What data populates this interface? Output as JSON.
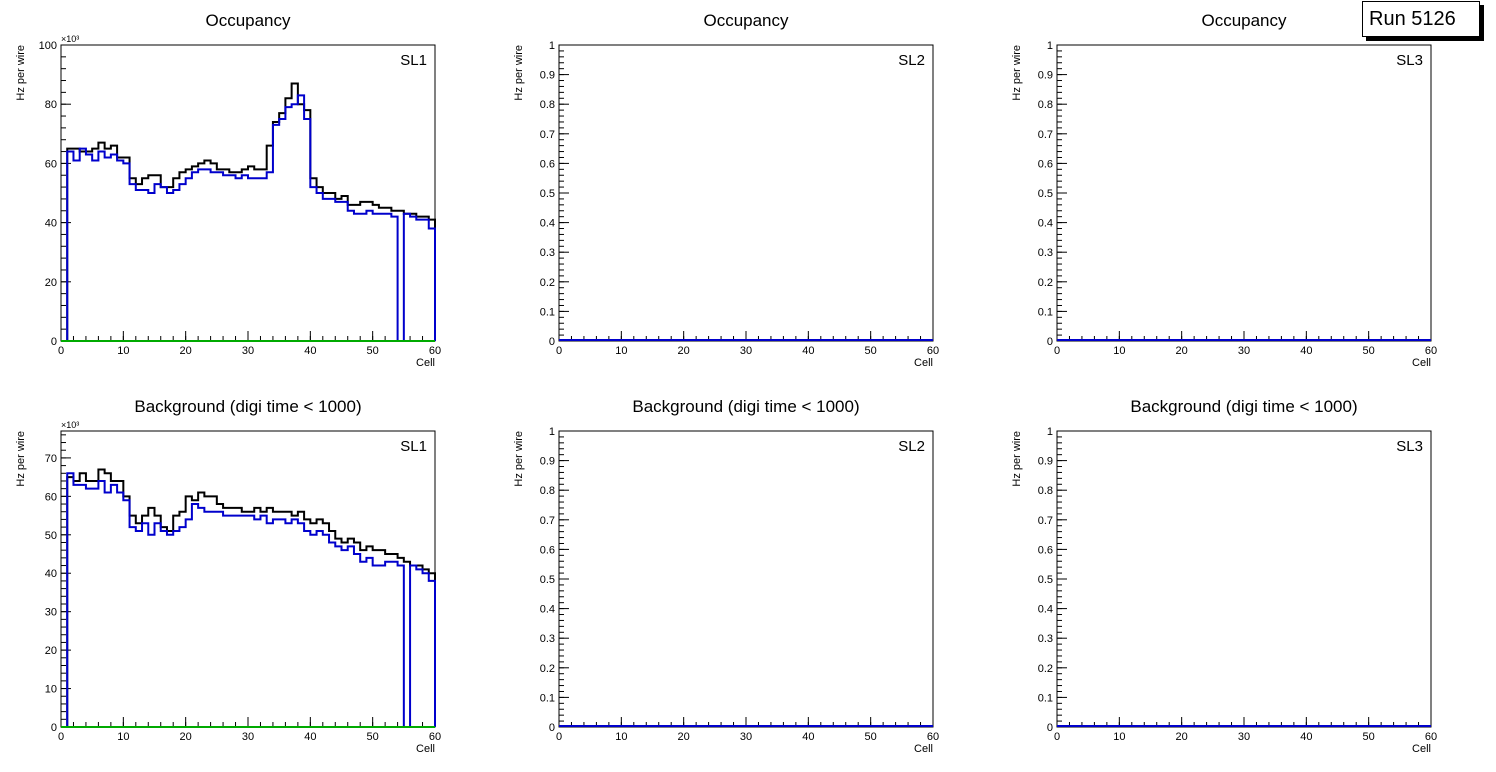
{
  "run_label": "Run 5126",
  "colors": {
    "total": "#000000",
    "blue": "#0000cc",
    "green": "#00aa00",
    "axis": "#000000"
  },
  "chart_data": [
    {
      "type": "line",
      "title": "Occupancy",
      "label": "SL1",
      "xlabel": "Cell",
      "ylabel": "Hz per wire",
      "xlim": [
        0,
        60
      ],
      "ylim": [
        0,
        100
      ],
      "yticks": [
        "0",
        "20",
        "40",
        "60",
        "80",
        "100"
      ],
      "xticks": [
        "0",
        "10",
        "20",
        "30",
        "40",
        "50",
        "60"
      ],
      "exponent_label": "×10³",
      "series": [
        {
          "name": "black",
          "color": "#000000",
          "values": [
            0,
            65,
            65,
            64,
            64,
            65,
            67,
            65,
            66,
            62,
            62,
            55,
            53,
            55,
            56,
            56,
            52,
            52,
            55,
            57,
            58,
            59,
            60,
            61,
            60,
            58,
            58,
            57,
            57,
            58,
            59,
            58,
            58,
            66,
            74,
            77,
            82,
            87,
            80,
            78,
            55,
            52,
            50,
            50,
            48,
            49,
            46,
            46,
            47,
            47,
            46,
            45,
            45,
            44,
            44,
            43,
            43,
            42,
            42,
            41
          ]
        },
        {
          "name": "blue",
          "color": "#0000cc",
          "values": [
            0,
            64,
            61,
            65,
            63,
            61,
            64,
            62,
            63,
            61,
            60,
            53,
            51,
            51,
            50,
            53,
            52,
            50,
            51,
            53,
            55,
            57,
            58,
            58,
            57,
            57,
            56,
            56,
            55,
            56,
            55,
            55,
            55,
            57,
            73,
            75,
            79,
            80,
            83,
            75,
            52,
            50,
            48,
            48,
            47,
            47,
            44,
            43,
            43,
            44,
            43,
            43,
            43,
            42,
            0,
            43,
            42,
            41,
            41,
            38
          ]
        },
        {
          "name": "green",
          "color": "#00aa00",
          "values": [
            0,
            0,
            0,
            0,
            0,
            0,
            0,
            0,
            0,
            0,
            0,
            0,
            0,
            0,
            0,
            0,
            0,
            0,
            0,
            0,
            0,
            0,
            0,
            0,
            0,
            0,
            0,
            0,
            0,
            0,
            0,
            0,
            0,
            0,
            0,
            0,
            0,
            0,
            0,
            0,
            0,
            0,
            0,
            0,
            0,
            0,
            0,
            0,
            0,
            0,
            0,
            0,
            0,
            0,
            0,
            0,
            0,
            0,
            0,
            0
          ]
        }
      ]
    },
    {
      "type": "line",
      "title": "Occupancy",
      "label": "SL2",
      "xlabel": "Cell",
      "ylabel": "Hz per wire",
      "xlim": [
        0,
        60
      ],
      "ylim": [
        0,
        1
      ],
      "yticks": [
        "0",
        "0.1",
        "0.2",
        "0.3",
        "0.4",
        "0.5",
        "0.6",
        "0.7",
        "0.8",
        "0.9",
        "1"
      ],
      "xticks": [
        "0",
        "10",
        "20",
        "30",
        "40",
        "50",
        "60"
      ],
      "exponent_label": "",
      "series": [
        {
          "name": "blue",
          "color": "#0000cc",
          "values": []
        }
      ]
    },
    {
      "type": "line",
      "title": "Occupancy",
      "label": "SL3",
      "xlabel": "Cell",
      "ylabel": "Hz per wire",
      "xlim": [
        0,
        60
      ],
      "ylim": [
        0,
        1
      ],
      "yticks": [
        "0",
        "0.1",
        "0.2",
        "0.3",
        "0.4",
        "0.5",
        "0.6",
        "0.7",
        "0.8",
        "0.9",
        "1"
      ],
      "xticks": [
        "0",
        "10",
        "20",
        "30",
        "40",
        "50",
        "60"
      ],
      "exponent_label": "",
      "series": [
        {
          "name": "blue",
          "color": "#0000cc",
          "values": []
        }
      ]
    },
    {
      "type": "line",
      "title": "Background (digi time < 1000)",
      "label": "SL1",
      "xlabel": "Cell",
      "ylabel": "Hz per wire",
      "xlim": [
        0,
        60
      ],
      "ylim": [
        0,
        77
      ],
      "yticks": [
        "0",
        "10",
        "20",
        "30",
        "40",
        "50",
        "60",
        "70"
      ],
      "xticks": [
        "0",
        "10",
        "20",
        "30",
        "40",
        "50",
        "60"
      ],
      "exponent_label": "×10³",
      "series": [
        {
          "name": "black",
          "color": "#000000",
          "values": [
            0,
            65,
            64,
            66,
            64,
            64,
            67,
            66,
            64,
            64,
            60,
            55,
            53,
            55,
            57,
            55,
            52,
            51,
            55,
            56,
            60,
            59,
            61,
            60,
            60,
            58,
            57,
            57,
            57,
            56,
            56,
            57,
            56,
            57,
            56,
            56,
            56,
            55,
            56,
            54,
            53,
            54,
            53,
            51,
            49,
            48,
            49,
            48,
            46,
            47,
            46,
            46,
            45,
            45,
            44,
            43,
            42,
            42,
            41,
            40
          ]
        },
        {
          "name": "blue",
          "color": "#0000cc",
          "values": [
            0,
            66,
            63,
            63,
            62,
            62,
            64,
            61,
            63,
            61,
            59,
            52,
            51,
            53,
            50,
            53,
            51,
            50,
            51,
            52,
            54,
            58,
            57,
            56,
            56,
            56,
            55,
            55,
            55,
            55,
            55,
            54,
            55,
            53,
            54,
            54,
            53,
            54,
            53,
            51,
            50,
            51,
            50,
            48,
            47,
            46,
            47,
            45,
            43,
            44,
            42,
            42,
            43,
            43,
            42,
            0,
            42,
            41,
            40,
            38
          ]
        },
        {
          "name": "green",
          "color": "#00aa00",
          "values": [
            0,
            0,
            0,
            0,
            0,
            0,
            0,
            0,
            0,
            0,
            0,
            0,
            0,
            0,
            0,
            0,
            0,
            0,
            0,
            0,
            0,
            0,
            0,
            0,
            0,
            0,
            0,
            0,
            0,
            0,
            0,
            0,
            0,
            0,
            0,
            0,
            0,
            0,
            0,
            0,
            0,
            0,
            0,
            0,
            0,
            0,
            0,
            0,
            0,
            0,
            0,
            0,
            0,
            0,
            0,
            0,
            0,
            0,
            0,
            0
          ]
        }
      ]
    },
    {
      "type": "line",
      "title": "Background (digi time < 1000)",
      "label": "SL2",
      "xlabel": "Cell",
      "ylabel": "Hz per wire",
      "xlim": [
        0,
        60
      ],
      "ylim": [
        0,
        1
      ],
      "yticks": [
        "0",
        "0.1",
        "0.2",
        "0.3",
        "0.4",
        "0.5",
        "0.6",
        "0.7",
        "0.8",
        "0.9",
        "1"
      ],
      "xticks": [
        "0",
        "10",
        "20",
        "30",
        "40",
        "50",
        "60"
      ],
      "exponent_label": "",
      "series": [
        {
          "name": "blue",
          "color": "#0000cc",
          "values": []
        }
      ]
    },
    {
      "type": "line",
      "title": "Background (digi time < 1000)",
      "label": "SL3",
      "xlabel": "Cell",
      "ylabel": "Hz per wire",
      "xlim": [
        0,
        60
      ],
      "ylim": [
        0,
        1
      ],
      "yticks": [
        "0",
        "0.1",
        "0.2",
        "0.3",
        "0.4",
        "0.5",
        "0.6",
        "0.7",
        "0.8",
        "0.9",
        "1"
      ],
      "xticks": [
        "0",
        "10",
        "20",
        "30",
        "40",
        "50",
        "60"
      ],
      "exponent_label": "",
      "series": [
        {
          "name": "blue",
          "color": "#0000cc",
          "values": []
        }
      ]
    }
  ]
}
